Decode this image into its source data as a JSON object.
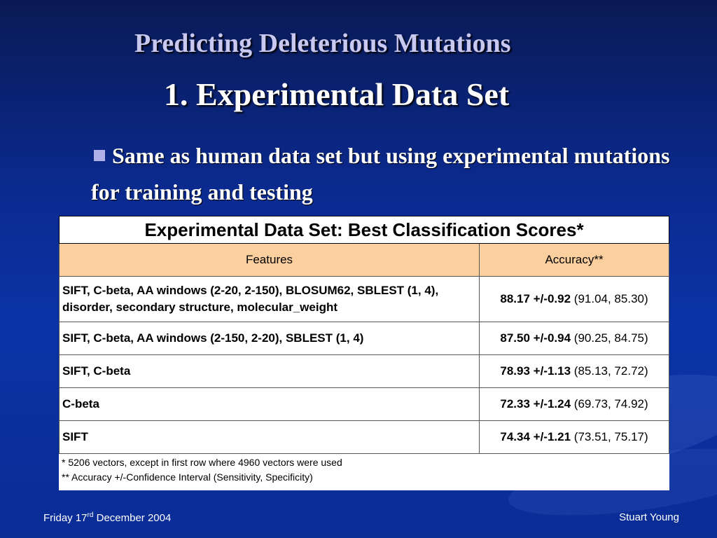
{
  "slide": {
    "title": "Predicting Deleterious Mutations",
    "subtitle": "1. Experimental Data Set",
    "bullet": "Same as human data set but using experimental mutations for training and testing"
  },
  "table": {
    "caption": "Experimental Data Set: Best Classification Scores*",
    "headers": {
      "features": "Features",
      "accuracy": "Accuracy**"
    },
    "rows": [
      {
        "features": "SIFT, C-beta, AA windows (2-20, 2-150), BLOSUM62, SBLEST (1, 4), disorder, secondary structure, molecular_weight",
        "accuracy": "88.17 +/-0.92",
        "ci": "(91.04, 85.30)"
      },
      {
        "features": "SIFT, C-beta, AA windows (2-150, 2-20), SBLEST (1, 4)",
        "accuracy": "87.50 +/-0.94",
        "ci": "(90.25, 84.75)"
      },
      {
        "features": "SIFT, C-beta",
        "accuracy": "78.93 +/-1.13",
        "ci": "(85.13, 72.72)"
      },
      {
        "features": "C-beta",
        "accuracy": "72.33 +/-1.24",
        "ci": "(69.73, 74.92)"
      },
      {
        "features": "SIFT",
        "accuracy": "74.34 +/-1.21",
        "ci": "(73.51, 75.17)"
      }
    ],
    "notes": [
      "* 5206 vectors, except in first row where 4960 vectors were used",
      "** Accuracy +/-Confidence Interval (Sensitivity, Specificity)"
    ]
  },
  "footer": {
    "date_prefix": "Friday 17",
    "date_sup": "rd",
    "date_suffix": " December 2004",
    "author": "Stuart Young"
  },
  "colors": {
    "background": "#0b2a8f",
    "title": "#c8c8f0",
    "table_header": "#fbcf9e"
  }
}
